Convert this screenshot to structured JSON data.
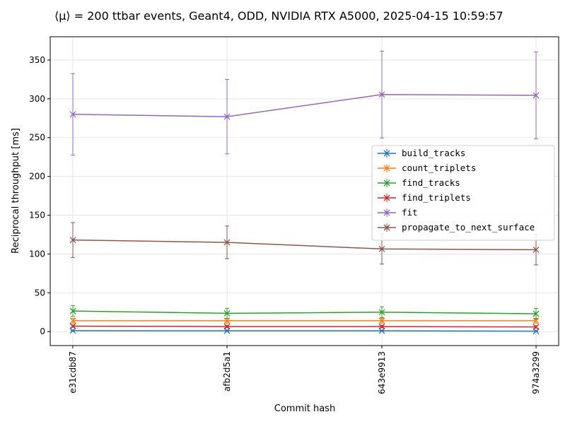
{
  "chart_data": {
    "type": "line",
    "title": "⟨μ⟩ = 200 ttbar events, Geant4, ODD, NVIDIA RTX A5000, 2025-04-15 10:59:57",
    "xlabel": "Commit hash",
    "ylabel": "Reciprocal throughput [ms]",
    "categories": [
      "e31cdb87",
      "afb2d5a1",
      "643e9913",
      "974a3299"
    ],
    "ylim": [
      -18,
      380
    ],
    "yticks": [
      0,
      50,
      100,
      150,
      200,
      250,
      300,
      350
    ],
    "grid": true,
    "legend_position": "center-right",
    "series": [
      {
        "name": "build_tracks",
        "color": "#1f77b4",
        "values": [
          1.2,
          1.0,
          1.0,
          0.5
        ],
        "errors": [
          0.4,
          0.4,
          0.4,
          0.3
        ]
      },
      {
        "name": "count_triplets",
        "color": "#ff7f0e",
        "values": [
          14,
          14,
          14,
          14
        ],
        "errors": [
          3,
          3,
          3,
          3
        ]
      },
      {
        "name": "find_tracks",
        "color": "#2ca02c",
        "values": [
          26.5,
          23.5,
          25,
          23
        ],
        "errors": [
          7,
          6.5,
          7,
          7
        ]
      },
      {
        "name": "find_triplets",
        "color": "#d62728",
        "values": [
          7,
          6.5,
          6.5,
          6
        ],
        "errors": [
          1.5,
          1.5,
          1.5,
          1.5
        ]
      },
      {
        "name": "fit",
        "color": "#9467bd",
        "values": [
          280,
          277,
          305.5,
          304.5
        ],
        "errors": [
          52.5,
          48,
          56,
          56
        ]
      },
      {
        "name": "propagate_to_next_surface",
        "color": "#8c564b",
        "values": [
          118,
          115,
          106.5,
          105.5
        ],
        "errors": [
          22.5,
          21,
          19.5,
          19.5
        ]
      }
    ]
  }
}
